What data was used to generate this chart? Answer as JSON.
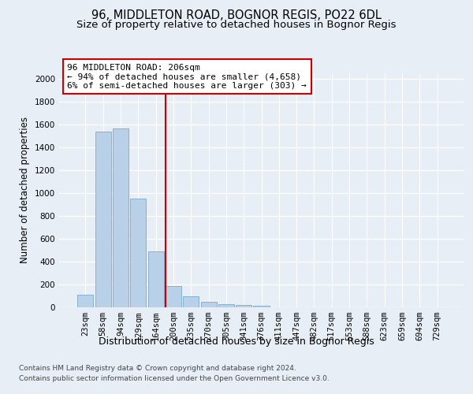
{
  "title1": "96, MIDDLETON ROAD, BOGNOR REGIS, PO22 6DL",
  "title2": "Size of property relative to detached houses in Bognor Regis",
  "xlabel": "Distribution of detached houses by size in Bognor Regis",
  "ylabel": "Number of detached properties",
  "categories": [
    "23sqm",
    "58sqm",
    "94sqm",
    "129sqm",
    "164sqm",
    "200sqm",
    "235sqm",
    "270sqm",
    "305sqm",
    "341sqm",
    "376sqm",
    "411sqm",
    "447sqm",
    "482sqm",
    "517sqm",
    "553sqm",
    "588sqm",
    "623sqm",
    "659sqm",
    "694sqm",
    "729sqm"
  ],
  "values": [
    110,
    1535,
    1565,
    950,
    490,
    185,
    95,
    45,
    30,
    20,
    15,
    0,
    0,
    0,
    0,
    0,
    0,
    0,
    0,
    0,
    0
  ],
  "bar_color": "#b8d0e8",
  "bar_edge_color": "#7aaad0",
  "vline_x_idx": 4.575,
  "vline_color": "#cc0000",
  "annotation_line1": "96 MIDDLETON ROAD: 206sqm",
  "annotation_line2": "← 94% of detached houses are smaller (4,658)",
  "annotation_line3": "6% of semi-detached houses are larger (303) →",
  "annotation_box_color": "white",
  "annotation_box_edge": "#cc0000",
  "ylim": [
    0,
    2050
  ],
  "yticks": [
    0,
    200,
    400,
    600,
    800,
    1000,
    1200,
    1400,
    1600,
    1800,
    2000
  ],
  "footer1": "Contains HM Land Registry data © Crown copyright and database right 2024.",
  "footer2": "Contains public sector information licensed under the Open Government Licence v3.0.",
  "bg_color": "#e8eef6",
  "plot_bg_color": "#e8eef6",
  "grid_color": "white",
  "title_fontsize": 10.5,
  "subtitle_fontsize": 9.5,
  "tick_fontsize": 7.5,
  "ylabel_fontsize": 8.5,
  "xlabel_fontsize": 9,
  "annot_fontsize": 8,
  "footer_fontsize": 6.5
}
